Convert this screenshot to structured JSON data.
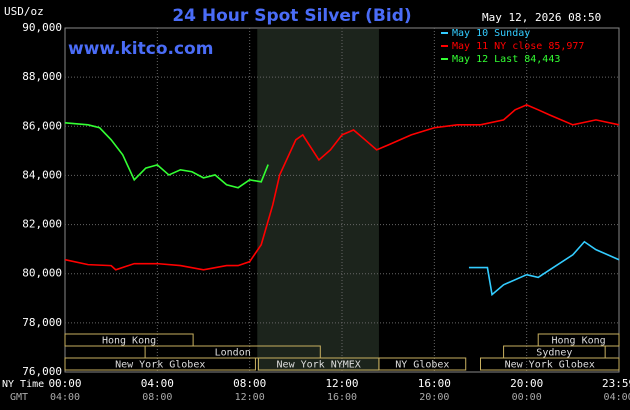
{
  "chart_data": {
    "type": "line",
    "title": "24 Hour Spot Silver (Bid)",
    "ylabel": "USD/oz",
    "timestamp": "May 12, 2026 08:50",
    "watermark": "www.kitco.com",
    "xlim": [
      0,
      24
    ],
    "xticks": [
      {
        "value": 0,
        "label": "00:00"
      },
      {
        "value": 4,
        "label": "04:00"
      },
      {
        "value": 8,
        "label": "08:00"
      },
      {
        "value": 12,
        "label": "12:00"
      },
      {
        "value": 16,
        "label": "16:00"
      },
      {
        "value": 20,
        "label": "20:00"
      },
      {
        "value": 23.983,
        "label": "23:59"
      }
    ],
    "x_row_label": "NY Time",
    "gmt_row_label": "GMT",
    "gmt_labels": [
      "04:00",
      "08:00",
      "12:00",
      "16:00",
      "20:00",
      "00:00",
      "04:00"
    ],
    "ylim": [
      76000,
      90000
    ],
    "yticks": [
      {
        "value": 76000,
        "label": "76,000"
      },
      {
        "value": 78000,
        "label": "78,000"
      },
      {
        "value": 80000,
        "label": "80,000"
      },
      {
        "value": 82000,
        "label": "82,000"
      },
      {
        "value": 84000,
        "label": "84,000"
      },
      {
        "value": 86000,
        "label": "86,000"
      },
      {
        "value": 88000,
        "label": "88,000"
      },
      {
        "value": 90000,
        "label": "90,000"
      }
    ],
    "grid": true,
    "series": [
      {
        "name": "May 10 Sunday",
        "color": "#33ccff",
        "x": [
          17.5,
          18.3,
          18.5,
          19,
          20,
          20.5,
          21,
          22,
          22.5,
          23,
          24
        ],
        "values": [
          80250,
          80250,
          79150,
          79550,
          79960,
          79850,
          80160,
          80770,
          81300,
          80980,
          80570
        ]
      },
      {
        "name": "May 11 NY close 85,977",
        "color": "#ff0000",
        "x": [
          0,
          1,
          2,
          2.2,
          3,
          4,
          5,
          6,
          7,
          7.5,
          8,
          8.5,
          9,
          9.3,
          9.7,
          10,
          10.3,
          11,
          11.5,
          12,
          12.5,
          13,
          13.5,
          14,
          15,
          16,
          17,
          18,
          19,
          19.5,
          20,
          20.5,
          21,
          22,
          23,
          24
        ],
        "values": [
          80570,
          80370,
          80330,
          80160,
          80410,
          80410,
          80330,
          80160,
          80330,
          80330,
          80490,
          81180,
          82800,
          84020,
          84840,
          85450,
          85650,
          84630,
          85040,
          85650,
          85850,
          85450,
          85040,
          85240,
          85650,
          85940,
          86060,
          86060,
          86260,
          86670,
          86870,
          86670,
          86460,
          86060,
          86260,
          86060
        ]
      },
      {
        "name": "May 12 Last 84,443",
        "color": "#33ff33",
        "x": [
          0,
          1,
          1.5,
          2,
          2.5,
          3,
          3.5,
          4,
          4.5,
          5,
          5.5,
          6,
          6.5,
          7,
          7.5,
          8,
          8.5,
          8.8
        ],
        "values": [
          86140,
          86060,
          85940,
          85450,
          84840,
          83820,
          84300,
          84430,
          84020,
          84230,
          84150,
          83900,
          84020,
          83620,
          83500,
          83820,
          83740,
          84443
        ]
      }
    ],
    "shaded_region": [
      8.33,
      13.6
    ],
    "sessions": [
      {
        "name": "Hong Kong",
        "start": 0,
        "end": 5.55,
        "row": 0
      },
      {
        "name": "Hong Kong",
        "start": 20.5,
        "end": 24,
        "row": 0
      },
      {
        "name": "London",
        "start": 3.47,
        "end": 11.06,
        "row": 1
      },
      {
        "name": "Sydney",
        "start": 19,
        "end": 23.4,
        "row": 1
      },
      {
        "name": "New York Globex",
        "start": 0,
        "end": 8.25,
        "row": 2
      },
      {
        "name": "New York NYMEX",
        "start": 8.38,
        "end": 13.6,
        "row": 2
      },
      {
        "name": "NY Globex",
        "start": 13.6,
        "end": 17.36,
        "row": 2
      },
      {
        "name": "New York Globex",
        "start": 18,
        "end": 24,
        "row": 2
      }
    ]
  }
}
